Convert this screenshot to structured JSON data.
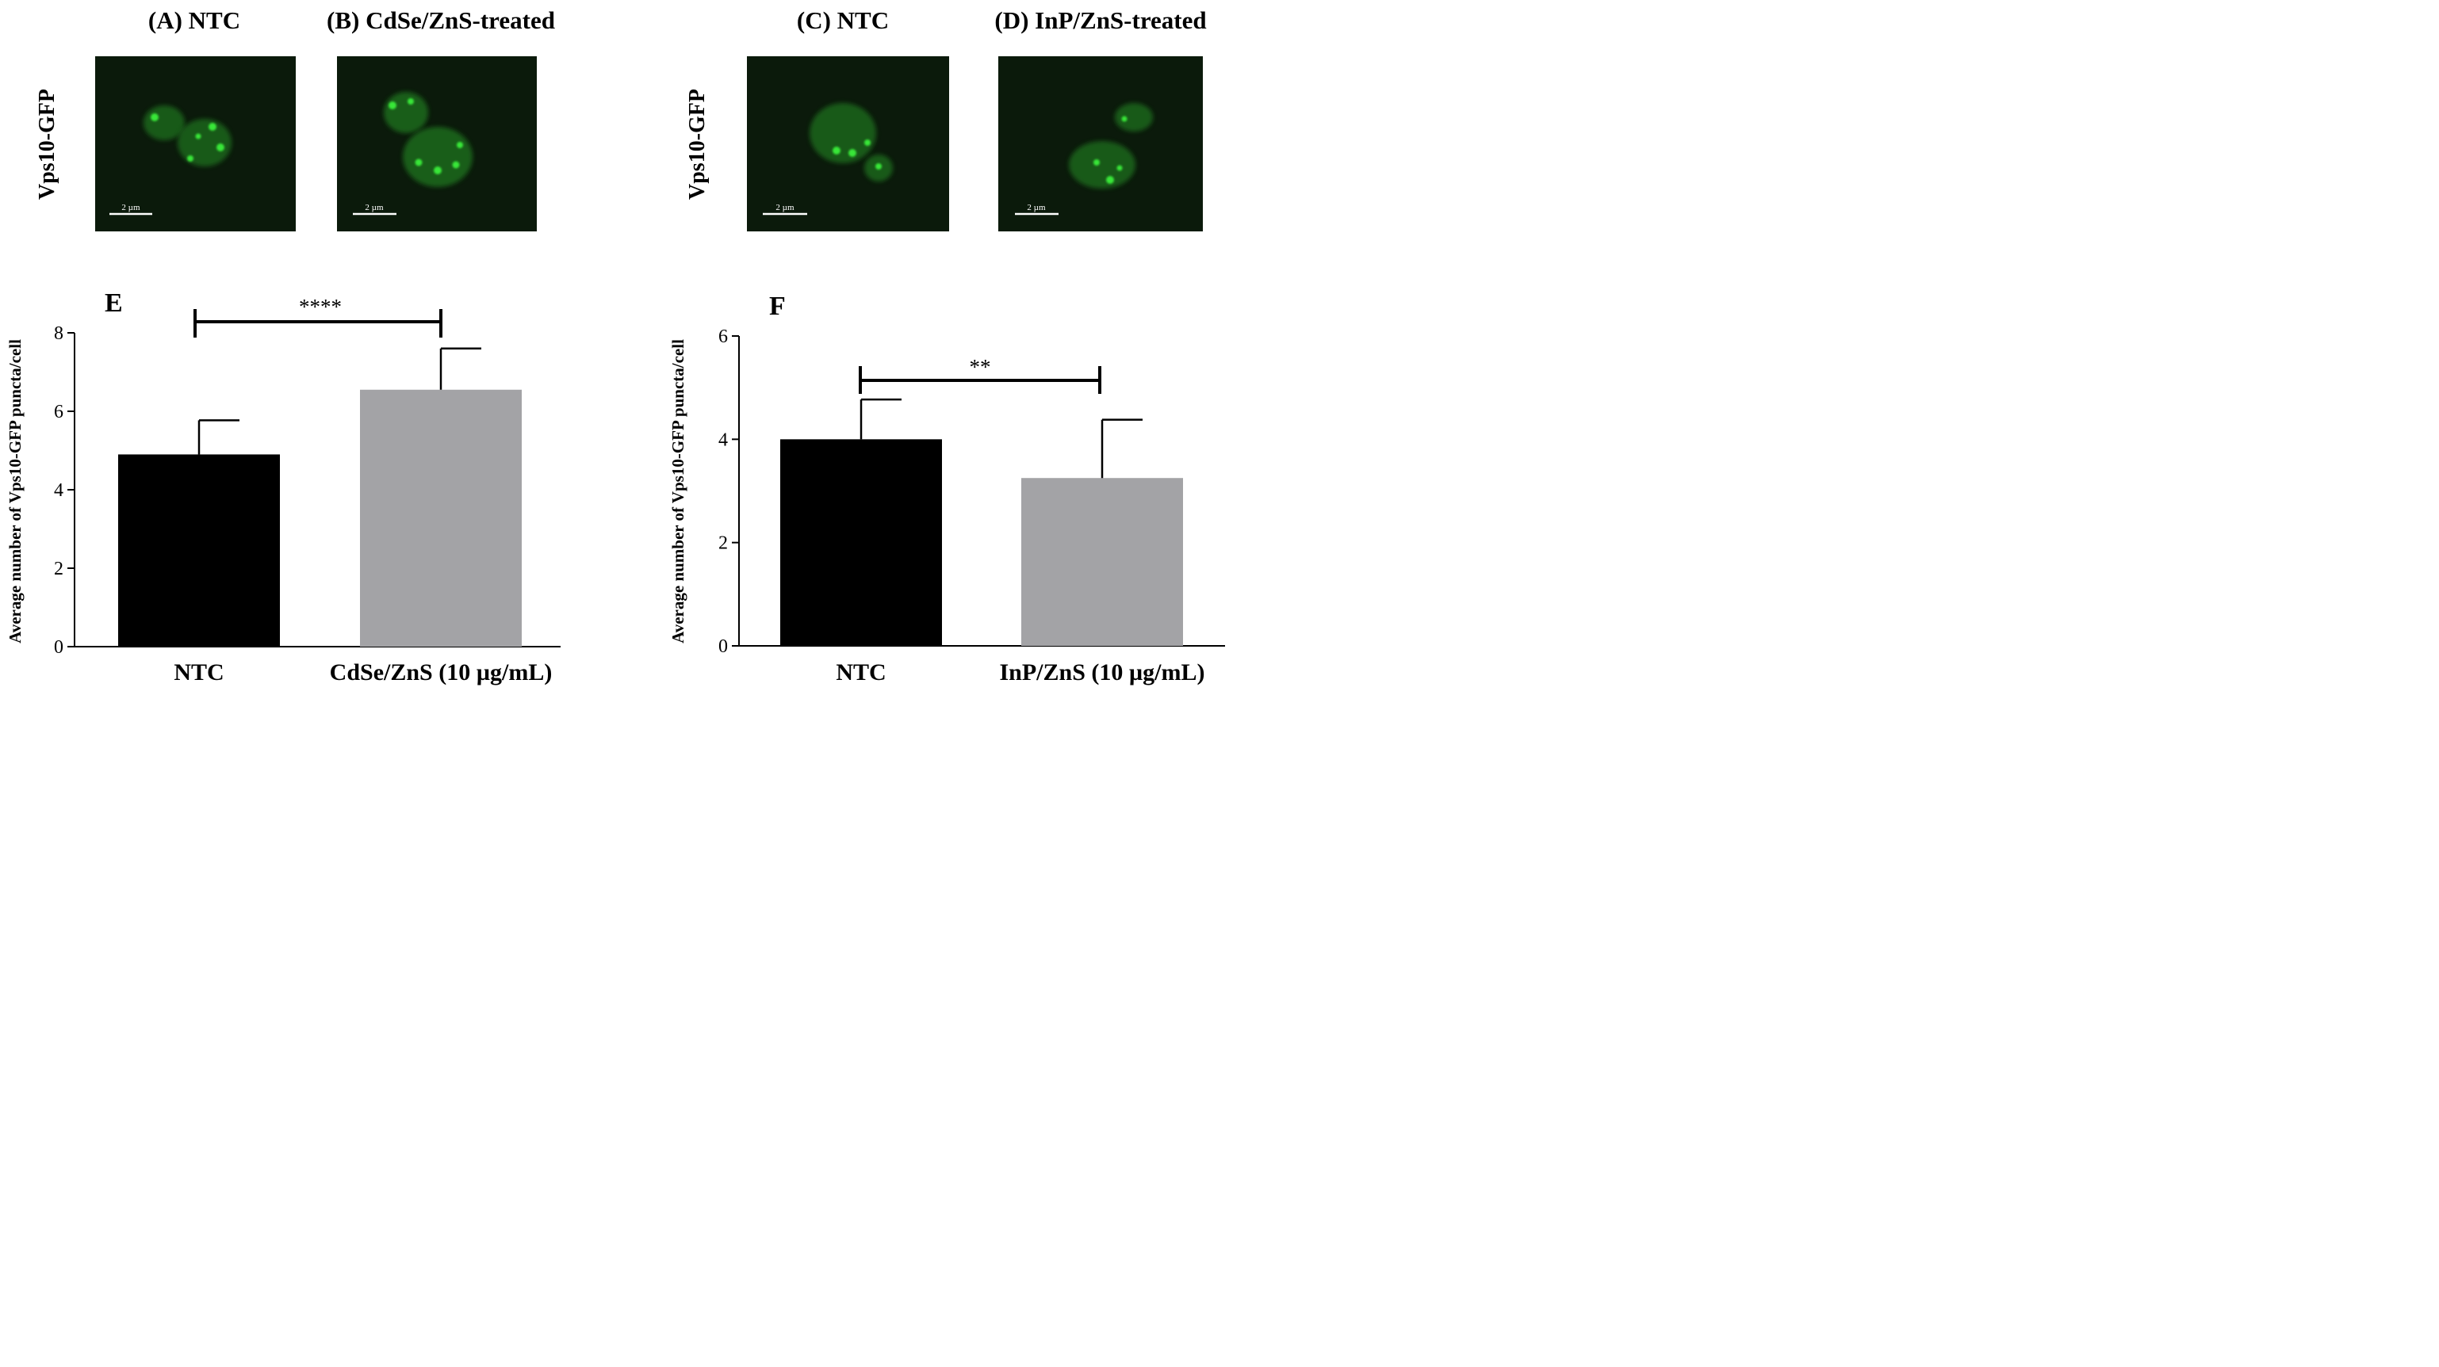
{
  "micrographs": [
    {
      "panel_label": "(A) NTC",
      "scale_bar_label": "2 µm"
    },
    {
      "panel_label": "(B) CdSe/ZnS-treated",
      "scale_bar_label": "2 µm"
    },
    {
      "panel_label": "(C) NTC",
      "scale_bar_label": "2 µm"
    },
    {
      "panel_label": "(D) InP/ZnS-treated",
      "scale_bar_label": "2 µm"
    }
  ],
  "row_labels": [
    "Vps10-GFP",
    "Vps10-GFP"
  ],
  "colors": {
    "ntc_bar": "#000000",
    "treated_bar": "#a3a3a6",
    "micrograph_bg": "#0b1a0b",
    "gfp": "#39e639"
  },
  "chart_data": [
    {
      "type": "bar",
      "panel_label": "E",
      "categories": [
        "NTC",
        "CdSe/ZnS (10 µg/mL)"
      ],
      "values": [
        4.9,
        6.55
      ],
      "errors": [
        0.87,
        1.05
      ],
      "ylabel": "Average number of Vps10-GFP puncta/cell",
      "ylim": [
        0,
        8
      ],
      "yticks": [
        "0",
        "2",
        "4",
        "6",
        "8"
      ],
      "significance": "****"
    },
    {
      "type": "bar",
      "panel_label": "F",
      "categories": [
        "NTC",
        "InP/ZnS (10 µg/mL)"
      ],
      "values": [
        4.0,
        3.25
      ],
      "errors": [
        0.77,
        1.13
      ],
      "ylabel": "Average number of Vps10-GFP puncta/cell",
      "ylim": [
        0,
        6
      ],
      "yticks": [
        "0",
        "2",
        "4",
        "6"
      ],
      "significance": "**"
    }
  ]
}
